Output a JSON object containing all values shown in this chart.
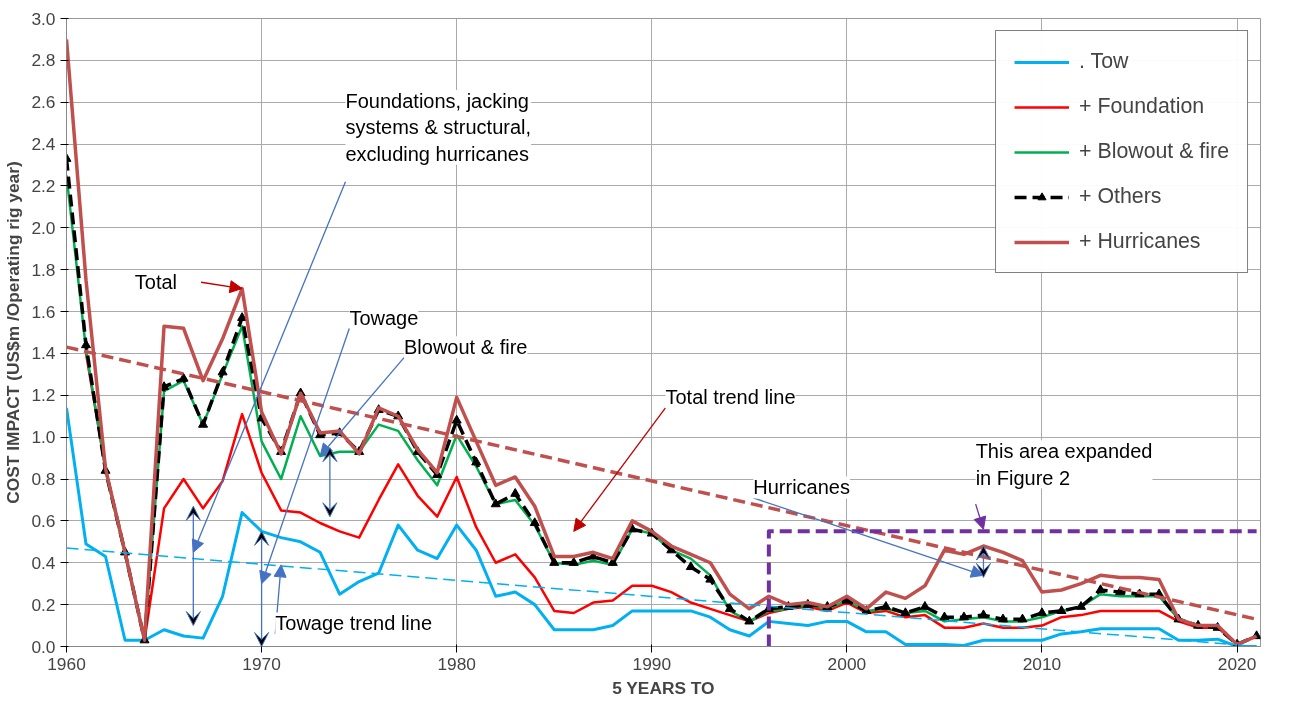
{
  "chart_data": {
    "type": "line",
    "xlabel": "5 YEARS TO",
    "ylabel": "COST IMPACT (US$m /Operating rig year)",
    "x": [
      1960,
      1961,
      1962,
      1963,
      1964,
      1965,
      1966,
      1967,
      1968,
      1969,
      1970,
      1971,
      1972,
      1973,
      1974,
      1975,
      1976,
      1977,
      1978,
      1979,
      1980,
      1981,
      1982,
      1983,
      1984,
      1985,
      1986,
      1987,
      1988,
      1989,
      1990,
      1991,
      1992,
      1993,
      1994,
      1995,
      1996,
      1997,
      1998,
      1999,
      2000,
      2001,
      2002,
      2003,
      2004,
      2005,
      2006,
      2007,
      2008,
      2009,
      2010,
      2011,
      2012,
      2013,
      2014,
      2015,
      2016,
      2017,
      2018,
      2019,
      2020,
      2021
    ],
    "xlim": [
      1960,
      2021.2
    ],
    "xticks": [
      1960,
      1970,
      1980,
      1990,
      2000,
      2010,
      2020
    ],
    "ylim": [
      0,
      3.0
    ],
    "yticks": [
      {
        "value": 0,
        "label": "0.0"
      },
      {
        "value": 0.2,
        "label": "0.2"
      },
      {
        "value": 0.4,
        "label": "0.4"
      },
      {
        "value": 0.6,
        "label": "0.6"
      },
      {
        "value": 0.8,
        "label": "0.8"
      },
      {
        "value": 1.0,
        "label": "1.0"
      },
      {
        "value": 1.2,
        "label": "1.2"
      },
      {
        "value": 1.4,
        "label": "1.4"
      },
      {
        "value": 1.6,
        "label": "1.6"
      },
      {
        "value": 1.8,
        "label": "1.8"
      },
      {
        "value": 2.0,
        "label": "2.0"
      },
      {
        "value": 2.2,
        "label": "2.2"
      },
      {
        "value": 2.4,
        "label": "2.4"
      },
      {
        "value": 2.6,
        "label": "2.6"
      },
      {
        "value": 2.8,
        "label": "2.8"
      },
      {
        "value": 3.0,
        "label": "3.0"
      }
    ],
    "grid": true,
    "legend": "top right",
    "series": [
      {
        "name": ". Tow",
        "color": "#00b0f0",
        "line_style": "solid",
        "marker": "none",
        "values": [
          1.14,
          0.49,
          0.43,
          0.03,
          0.03,
          0.08,
          0.05,
          0.04,
          0.24,
          0.64,
          0.55,
          0.52,
          0.5,
          0.45,
          0.25,
          0.31,
          0.35,
          0.58,
          0.46,
          0.42,
          0.58,
          0.46,
          0.24,
          0.26,
          0.2,
          0.08,
          0.08,
          0.08,
          0.1,
          0.17,
          0.17,
          0.17,
          0.17,
          0.14,
          0.08,
          0.05,
          0.12,
          0.11,
          0.1,
          0.12,
          0.12,
          0.07,
          0.07,
          0.01,
          0.01,
          0.01,
          0.005,
          0.03,
          0.03,
          0.03,
          0.03,
          0.06,
          0.07,
          0.085,
          0.085,
          0.085,
          0.085,
          0.03,
          0.03,
          0.035,
          0.0,
          0.0
        ]
      },
      {
        "name": "+ Foundation",
        "color": "#ff0000",
        "line_style": "solid",
        "marker": "none",
        "values": [
          null,
          1.4,
          0.85,
          0.45,
          0.03,
          0.66,
          0.8,
          0.66,
          0.79,
          1.11,
          0.83,
          0.65,
          0.64,
          0.59,
          0.55,
          0.52,
          0.7,
          0.87,
          0.72,
          0.62,
          0.81,
          0.57,
          0.4,
          0.44,
          0.33,
          0.17,
          0.16,
          0.21,
          0.22,
          0.29,
          0.29,
          0.26,
          0.21,
          0.18,
          0.15,
          0.12,
          0.16,
          0.18,
          0.19,
          0.17,
          0.21,
          0.16,
          0.17,
          0.14,
          0.15,
          0.09,
          0.09,
          0.11,
          0.09,
          0.09,
          0.1,
          0.14,
          0.15,
          0.17,
          0.17,
          0.17,
          0.17,
          0.12,
          0.09,
          0.09,
          0.01,
          0.05
        ]
      },
      {
        "name": "+ Blowout & fire",
        "color": "#00b050",
        "line_style": "solid",
        "marker": "none",
        "values": [
          2.25,
          1.42,
          0.84,
          0.44,
          0.03,
          1.22,
          1.27,
          1.06,
          1.3,
          1.53,
          0.98,
          0.8,
          1.1,
          0.91,
          0.93,
          0.93,
          1.06,
          1.03,
          0.89,
          0.77,
          1.01,
          0.86,
          0.68,
          0.7,
          0.58,
          0.4,
          0.39,
          0.41,
          0.39,
          0.56,
          0.54,
          0.46,
          0.42,
          0.34,
          0.17,
          0.12,
          0.17,
          0.18,
          0.2,
          0.18,
          0.22,
          0.17,
          0.18,
          0.16,
          0.17,
          0.12,
          0.13,
          0.14,
          0.12,
          0.12,
          0.14,
          0.17,
          0.19,
          0.25,
          0.24,
          0.24,
          0.24,
          0.13,
          0.1,
          null,
          null,
          null
        ]
      },
      {
        "name": "+ Others",
        "color": "#000000",
        "line_style": "dashed",
        "marker": "triangle",
        "values": [
          2.33,
          1.44,
          0.84,
          0.45,
          0.03,
          1.24,
          1.28,
          1.06,
          1.31,
          1.57,
          1.09,
          0.93,
          1.21,
          1.01,
          1.02,
          0.93,
          1.13,
          1.1,
          0.93,
          0.82,
          1.08,
          0.88,
          0.68,
          0.73,
          0.59,
          0.4,
          0.4,
          0.43,
          0.4,
          0.56,
          0.54,
          0.46,
          0.38,
          0.32,
          0.18,
          0.12,
          0.18,
          0.19,
          0.2,
          0.19,
          0.22,
          0.17,
          0.19,
          0.16,
          0.19,
          0.14,
          0.14,
          0.15,
          0.13,
          0.13,
          0.16,
          0.17,
          0.19,
          0.27,
          0.26,
          0.25,
          0.25,
          0.13,
          0.1,
          0.09,
          0.01,
          0.05
        ]
      },
      {
        "name": "+ Hurricanes",
        "color": "#c0504d",
        "line_style": "solid",
        "marker": "none",
        "values": [
          2.9,
          1.75,
          0.85,
          0.45,
          0.03,
          1.53,
          1.52,
          1.27,
          1.47,
          1.71,
          1.12,
          0.92,
          1.21,
          1.02,
          1.03,
          0.92,
          1.14,
          1.1,
          0.94,
          0.83,
          1.19,
          0.98,
          0.77,
          0.81,
          0.67,
          0.43,
          0.43,
          0.45,
          0.42,
          0.6,
          0.55,
          0.48,
          0.44,
          0.4,
          0.25,
          0.18,
          0.24,
          0.2,
          0.21,
          0.19,
          0.24,
          0.18,
          0.26,
          0.23,
          0.29,
          0.46,
          0.44,
          0.48,
          0.45,
          0.41,
          0.26,
          0.27,
          0.3,
          0.34,
          0.33,
          0.33,
          0.32,
          0.13,
          0.1,
          0.1,
          0.01,
          0.05
        ]
      },
      {
        "color": "#c0504d",
        "line_style": "dashed",
        "marker": "none",
        "x": [
          1960,
          2021
        ],
        "values": [
          1.43,
          0.13
        ]
      },
      {
        "color": "#00b0f0",
        "line_style": "dashed",
        "marker": "none",
        "x": [
          1960,
          2021
        ],
        "values": [
          0.47,
          0.0
        ]
      },
      {
        "color": "#7030a0",
        "line_style": "dashed",
        "marker": "none",
        "x": [
          1996,
          1996,
          2021
        ],
        "values": [
          0.0,
          0.55,
          0.55
        ]
      }
    ],
    "annotations": [
      {
        "text": "Total",
        "x": 1969,
        "y": 1.71
      },
      "Foundations, jacking systems & structural, excluding hurricanes",
      "Towage",
      {
        "text": "Blowout & fire",
        "x": 1973,
        "y": 0.91
      },
      "Total trend line",
      {
        "text": "Towage trend line",
        "x": 1971,
        "y": 0.39
      },
      "Hurricanes",
      {
        "text": "This area expanded in Figure 2",
        "x": 2007,
        "y": 0.56
      }
    ]
  }
}
